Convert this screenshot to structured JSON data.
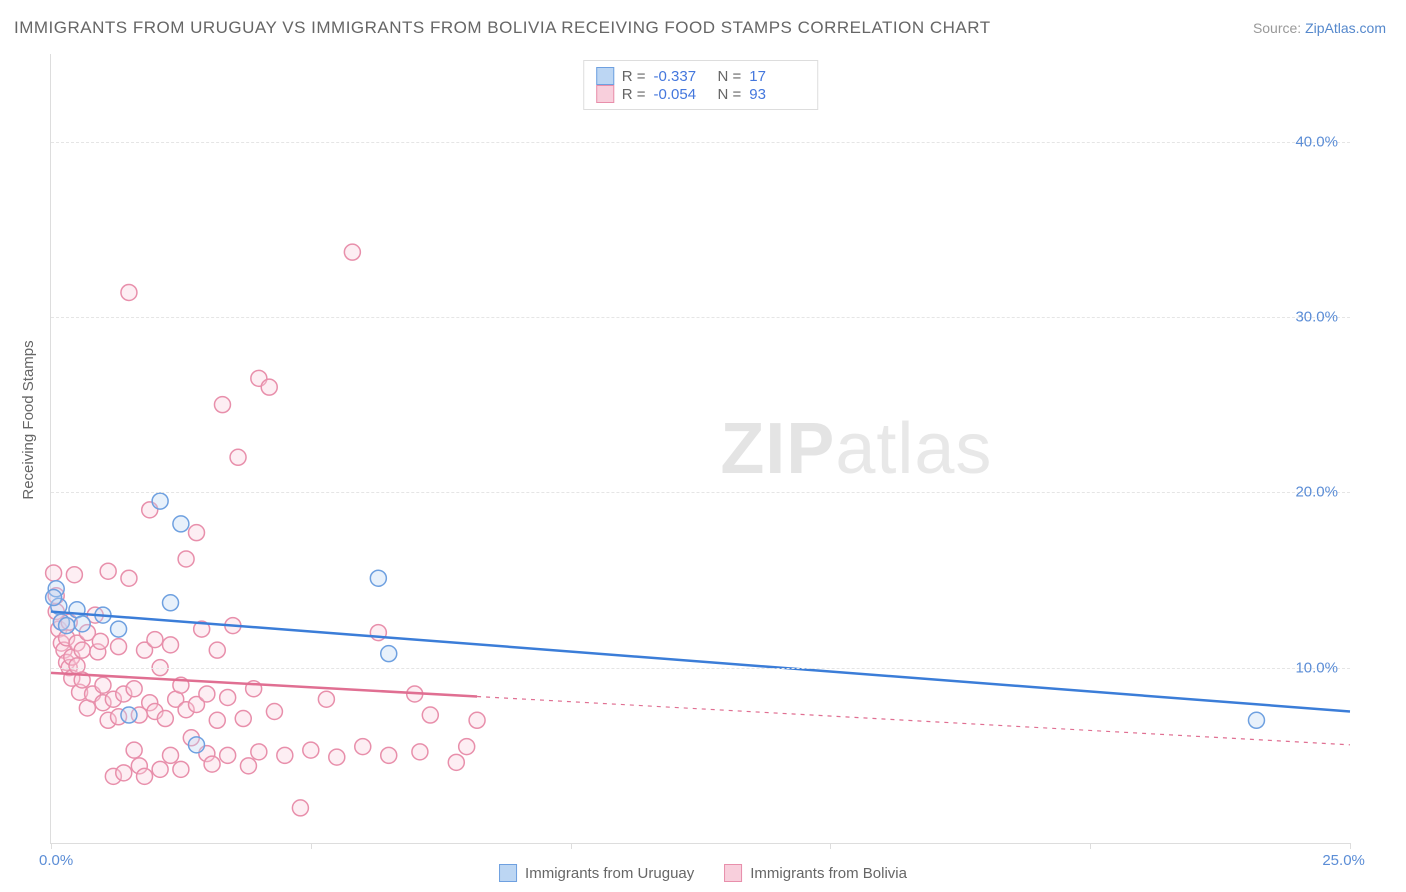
{
  "title": "IMMIGRANTS FROM URUGUAY VS IMMIGRANTS FROM BOLIVIA RECEIVING FOOD STAMPS CORRELATION CHART",
  "source_label": "Source: ",
  "source_link": "ZipAtlas.com",
  "y_axis_label": "Receiving Food Stamps",
  "watermark_bold": "ZIP",
  "watermark_rest": "atlas",
  "chart": {
    "type": "scatter",
    "background_color": "#ffffff",
    "grid_color": "#e5e5e5",
    "axis_color": "#dddddd",
    "text_color": "#666666",
    "value_color": "#4477dd",
    "tick_label_color": "#5b8dd6",
    "xlim": [
      0,
      25
    ],
    "ylim": [
      0,
      45
    ],
    "x_ticks": [
      0,
      5,
      10,
      15,
      20,
      25
    ],
    "x_tick_labels": [
      "0.0%",
      "",
      "",
      "",
      "",
      "25.0%"
    ],
    "y_ticks": [
      10,
      20,
      30,
      40
    ],
    "y_tick_labels": [
      "10.0%",
      "20.0%",
      "30.0%",
      "40.0%"
    ],
    "marker_radius": 8,
    "marker_stroke_width": 1.5,
    "marker_fill_opacity": 0.35,
    "trend_line_width": 2.5,
    "dashed_line_width": 1.2,
    "top_legend": [
      {
        "swatch_fill": "#bcd6f3",
        "swatch_stroke": "#6ea0e0",
        "r_label": "R =",
        "r_value": "-0.337",
        "n_label": "N =",
        "n_value": "17"
      },
      {
        "swatch_fill": "#f8cfdc",
        "swatch_stroke": "#e88fab",
        "r_label": "R =",
        "r_value": "-0.054",
        "n_label": "N =",
        "n_value": "93"
      }
    ],
    "bottom_legend": [
      {
        "swatch_fill": "#bcd6f3",
        "swatch_stroke": "#6ea0e0",
        "label": "Immigrants from Uruguay"
      },
      {
        "swatch_fill": "#f8cfdc",
        "swatch_stroke": "#e88fab",
        "label": "Immigrants from Bolivia"
      }
    ],
    "series": [
      {
        "name": "uruguay",
        "color_stroke": "#6ea0e0",
        "color_fill": "#bcd6f3",
        "trend_color": "#3b7dd8",
        "trend": {
          "x1": 0,
          "y1": 13.2,
          "x2": 25,
          "y2": 7.5
        },
        "trend_solid_xmax": 25,
        "points": [
          [
            0.1,
            14.5
          ],
          [
            0.15,
            13.5
          ],
          [
            0.2,
            12.6
          ],
          [
            0.3,
            12.4
          ],
          [
            0.5,
            13.3
          ],
          [
            0.6,
            12.5
          ],
          [
            1.0,
            13.0
          ],
          [
            1.3,
            12.2
          ],
          [
            1.5,
            7.3
          ],
          [
            2.1,
            19.5
          ],
          [
            2.3,
            13.7
          ],
          [
            2.5,
            18.2
          ],
          [
            2.8,
            5.6
          ],
          [
            6.3,
            15.1
          ],
          [
            6.5,
            10.8
          ],
          [
            23.2,
            7.0
          ],
          [
            0.05,
            14.0
          ]
        ]
      },
      {
        "name": "bolivia",
        "color_stroke": "#e88fab",
        "color_fill": "#f8cfdc",
        "trend_color": "#e06f92",
        "trend": {
          "x1": 0,
          "y1": 9.7,
          "x2": 25,
          "y2": 5.6
        },
        "trend_solid_xmax": 8.2,
        "points": [
          [
            0.05,
            15.4
          ],
          [
            0.1,
            14.1
          ],
          [
            0.1,
            13.2
          ],
          [
            0.15,
            12.2
          ],
          [
            0.2,
            11.4
          ],
          [
            0.2,
            12.6
          ],
          [
            0.25,
            11.0
          ],
          [
            0.3,
            10.3
          ],
          [
            0.35,
            10.0
          ],
          [
            0.3,
            11.7
          ],
          [
            0.35,
            12.6
          ],
          [
            0.4,
            10.6
          ],
          [
            0.4,
            9.4
          ],
          [
            0.45,
            15.3
          ],
          [
            0.5,
            10.1
          ],
          [
            0.5,
            11.4
          ],
          [
            0.55,
            8.6
          ],
          [
            0.6,
            9.3
          ],
          [
            0.6,
            11.0
          ],
          [
            0.7,
            12.0
          ],
          [
            0.7,
            7.7
          ],
          [
            0.8,
            8.5
          ],
          [
            0.85,
            13.0
          ],
          [
            0.9,
            10.9
          ],
          [
            0.95,
            11.5
          ],
          [
            1.0,
            8.0
          ],
          [
            1.0,
            9.0
          ],
          [
            1.1,
            7.0
          ],
          [
            1.1,
            15.5
          ],
          [
            1.2,
            8.2
          ],
          [
            1.2,
            3.8
          ],
          [
            1.3,
            7.2
          ],
          [
            1.3,
            11.2
          ],
          [
            1.4,
            4.0
          ],
          [
            1.4,
            8.5
          ],
          [
            1.5,
            31.4
          ],
          [
            1.5,
            15.1
          ],
          [
            1.6,
            5.3
          ],
          [
            1.6,
            8.8
          ],
          [
            1.7,
            7.3
          ],
          [
            1.7,
            4.4
          ],
          [
            1.8,
            11.0
          ],
          [
            1.8,
            3.8
          ],
          [
            1.9,
            8.0
          ],
          [
            1.9,
            19.0
          ],
          [
            2.0,
            11.6
          ],
          [
            2.0,
            7.5
          ],
          [
            2.1,
            10.0
          ],
          [
            2.1,
            4.2
          ],
          [
            2.2,
            7.1
          ],
          [
            2.3,
            11.3
          ],
          [
            2.3,
            5.0
          ],
          [
            2.4,
            8.2
          ],
          [
            2.5,
            4.2
          ],
          [
            2.5,
            9.0
          ],
          [
            2.6,
            7.6
          ],
          [
            2.7,
            6.0
          ],
          [
            2.8,
            17.7
          ],
          [
            2.8,
            7.9
          ],
          [
            2.9,
            12.2
          ],
          [
            3.0,
            5.1
          ],
          [
            3.0,
            8.5
          ],
          [
            3.1,
            4.5
          ],
          [
            3.2,
            11.0
          ],
          [
            3.2,
            7.0
          ],
          [
            3.3,
            25.0
          ],
          [
            3.4,
            5.0
          ],
          [
            3.4,
            8.3
          ],
          [
            3.5,
            12.4
          ],
          [
            3.6,
            22.0
          ],
          [
            3.7,
            7.1
          ],
          [
            3.8,
            4.4
          ],
          [
            3.9,
            8.8
          ],
          [
            4.0,
            5.2
          ],
          [
            4.0,
            26.5
          ],
          [
            4.2,
            26.0
          ],
          [
            4.3,
            7.5
          ],
          [
            4.5,
            5.0
          ],
          [
            4.8,
            2.0
          ],
          [
            5.0,
            5.3
          ],
          [
            5.3,
            8.2
          ],
          [
            5.5,
            4.9
          ],
          [
            5.8,
            33.7
          ],
          [
            6.0,
            5.5
          ],
          [
            6.3,
            12.0
          ],
          [
            6.5,
            5.0
          ],
          [
            7.0,
            8.5
          ],
          [
            7.1,
            5.2
          ],
          [
            7.3,
            7.3
          ],
          [
            7.8,
            4.6
          ],
          [
            8.0,
            5.5
          ],
          [
            8.2,
            7.0
          ],
          [
            2.6,
            16.2
          ]
        ]
      }
    ]
  }
}
